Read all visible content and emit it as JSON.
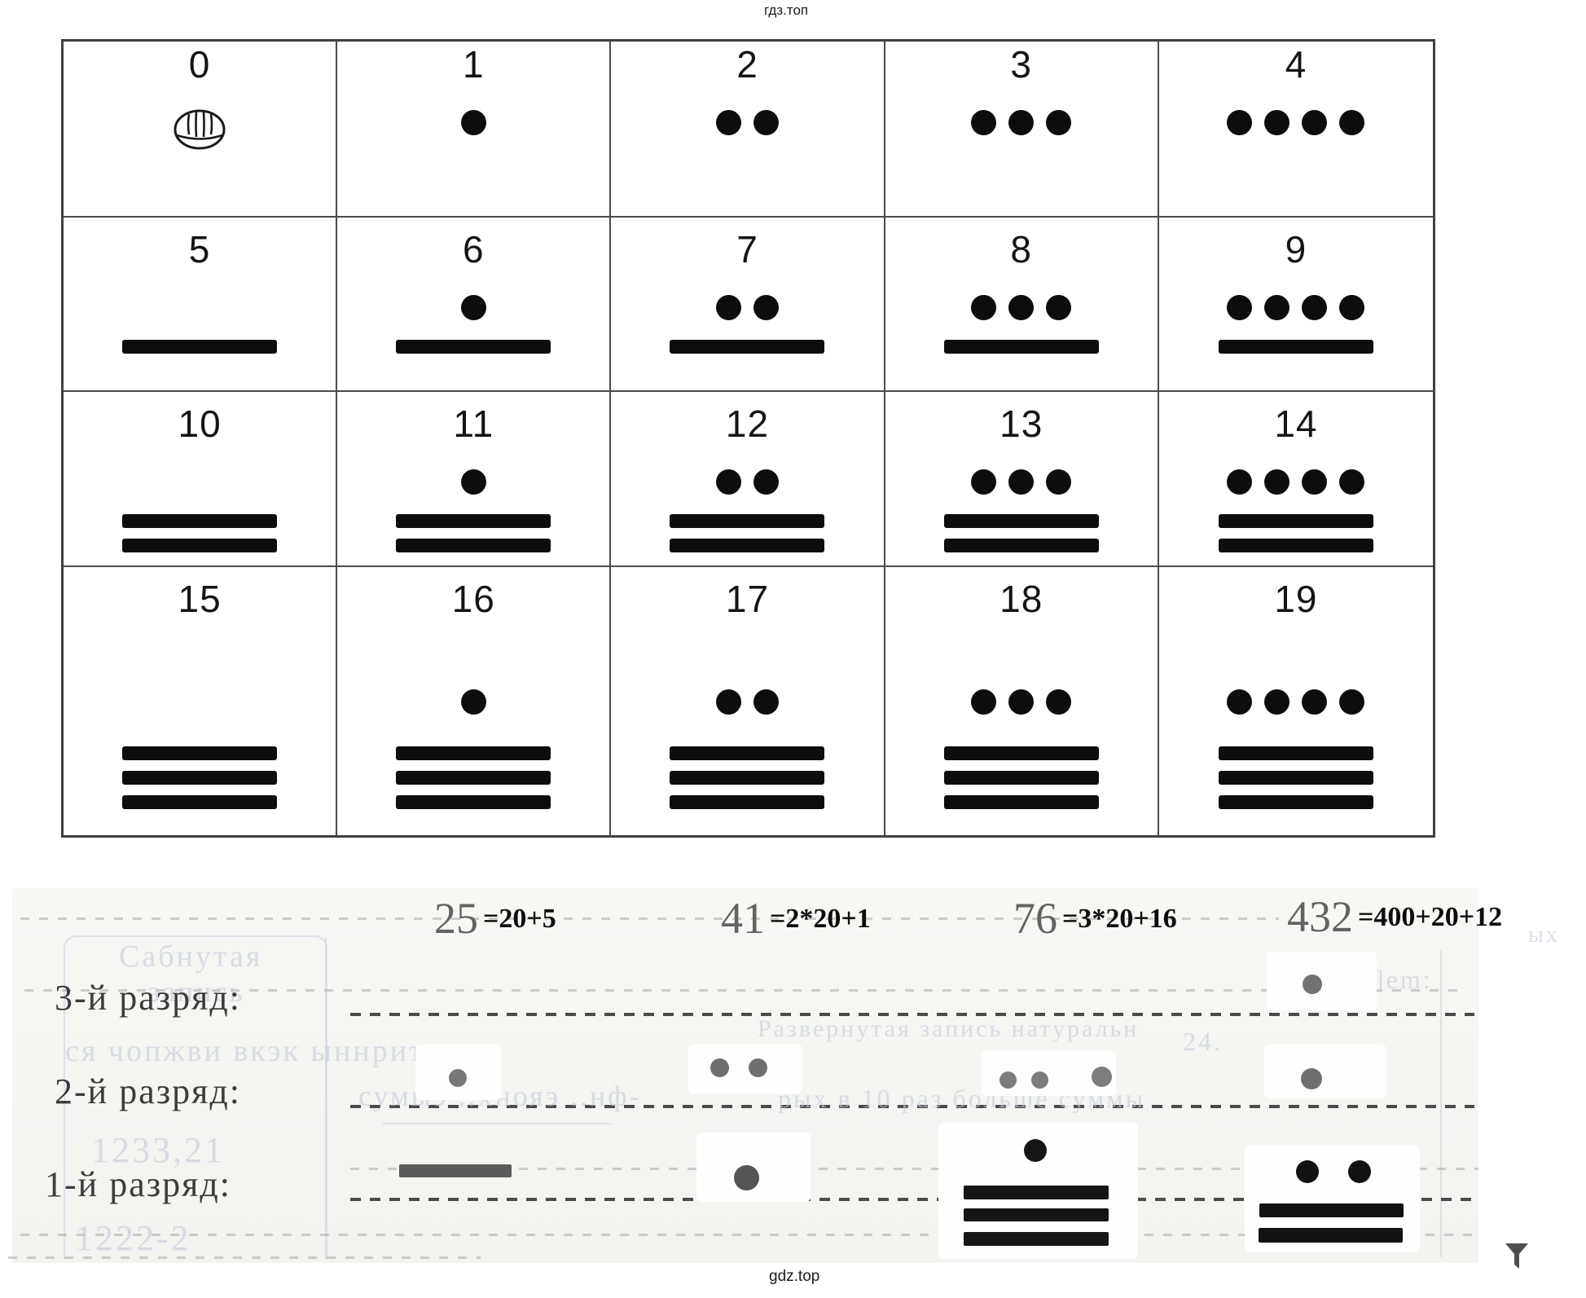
{
  "watermark_top": "гдз.топ",
  "watermark_bottom": "gdz.top",
  "numeral_table": {
    "description": "Mayan numerals 0-19",
    "cells": [
      {
        "label": "0",
        "dots": 0,
        "bars": 0,
        "shell": true
      },
      {
        "label": "1",
        "dots": 1,
        "bars": 0
      },
      {
        "label": "2",
        "dots": 2,
        "bars": 0
      },
      {
        "label": "3",
        "dots": 3,
        "bars": 0
      },
      {
        "label": "4",
        "dots": 4,
        "bars": 0
      },
      {
        "label": "5",
        "dots": 0,
        "bars": 1
      },
      {
        "label": "6",
        "dots": 1,
        "bars": 1
      },
      {
        "label": "7",
        "dots": 2,
        "bars": 1
      },
      {
        "label": "8",
        "dots": 3,
        "bars": 1
      },
      {
        "label": "9",
        "dots": 4,
        "bars": 1
      },
      {
        "label": "10",
        "dots": 0,
        "bars": 2
      },
      {
        "label": "11",
        "dots": 1,
        "bars": 2
      },
      {
        "label": "12",
        "dots": 2,
        "bars": 2
      },
      {
        "label": "13",
        "dots": 3,
        "bars": 2
      },
      {
        "label": "14",
        "dots": 4,
        "bars": 2
      },
      {
        "label": "15",
        "dots": 0,
        "bars": 3
      },
      {
        "label": "16",
        "dots": 1,
        "bars": 3
      },
      {
        "label": "17",
        "dots": 2,
        "bars": 3
      },
      {
        "label": "18",
        "dots": 3,
        "bars": 3
      },
      {
        "label": "19",
        "dots": 4,
        "bars": 3
      }
    ]
  },
  "place_value_panel": {
    "row_labels": [
      "3-й разряд:",
      "2-й разряд:",
      "1-й разряд:"
    ],
    "examples": [
      {
        "number": "25",
        "formula": "=20+5",
        "glyphs": {
          "razryad3": {
            "dots": 0,
            "bars": 0
          },
          "razryad2": {
            "dots": 1,
            "bars": 0
          },
          "razryad1": {
            "dots": 0,
            "bars": 1
          }
        }
      },
      {
        "number": "41",
        "formula": "=2*20+1",
        "glyphs": {
          "razryad3": {
            "dots": 0,
            "bars": 0
          },
          "razryad2": {
            "dots": 2,
            "bars": 0
          },
          "razryad1": {
            "dots": 1,
            "bars": 0
          }
        }
      },
      {
        "number": "76",
        "formula": "=3*20+16",
        "glyphs": {
          "razryad3": {
            "dots": 0,
            "bars": 0
          },
          "razryad2": {
            "dots": 3,
            "bars": 0
          },
          "razryad1": {
            "dots": 1,
            "bars": 3
          }
        }
      },
      {
        "number": "432",
        "formula": "=400+20+12",
        "glyphs": {
          "razryad3": {
            "dots": 1,
            "bars": 0
          },
          "razryad2": {
            "dots": 1,
            "bars": 0
          },
          "razryad1": {
            "dots": 2,
            "bars": 2
          }
        }
      }
    ]
  },
  "bleed_through_text": [
    {
      "text": "Сабнутая"
    },
    {
      "text": "запись"
    },
    {
      "text": "ся чопжви   вкэк   ыннритнэ"
    },
    {
      "text": "Развернутая запись натуральн"
    },
    {
      "text": "сумыэ ..хнояэ ..нф-"
    },
    {
      "text": "рых в 10 раз больше суммы"
    },
    {
      "text": "1233,21"
    },
    {
      "text": "1222-2"
    },
    {
      "text": "]em:"
    },
    {
      "text": "24."
    },
    {
      "text": "ых"
    }
  ],
  "colors": {
    "table_border": "#3f3f3f",
    "glyph_black": "#0d0d0d",
    "faded_dot_gray": "#787878",
    "paper": "#f6f6f3",
    "bleed_blue": "#c4cddc",
    "dash_dark": "#4b4b4b"
  }
}
